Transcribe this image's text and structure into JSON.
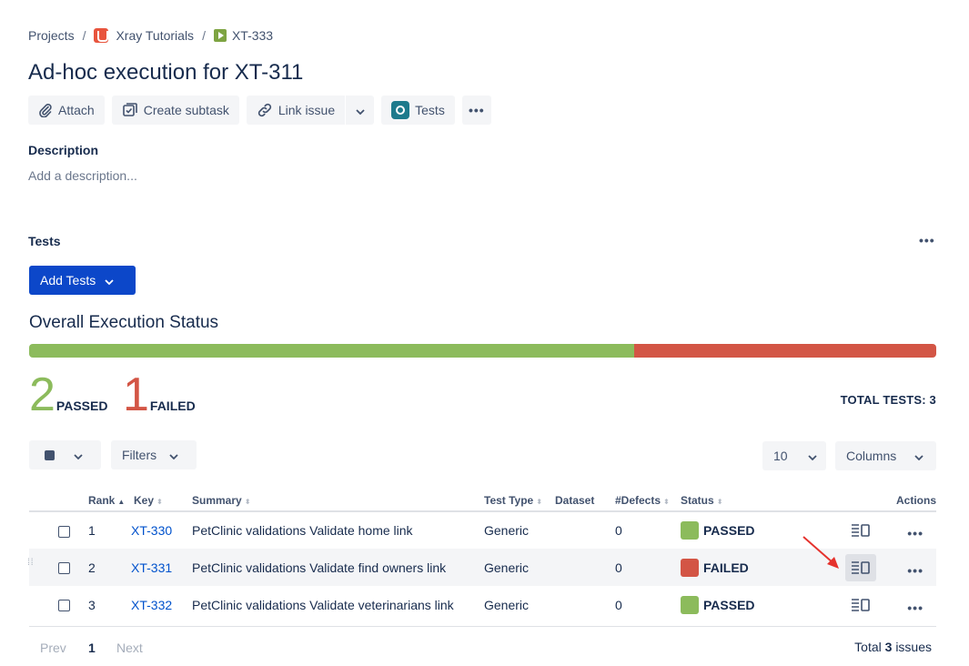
{
  "breadcrumb": {
    "root": "Projects",
    "project": "Xray Tutorials",
    "issue": "XT-333",
    "separator": "/"
  },
  "issue": {
    "title": "Ad-hoc execution for XT-311"
  },
  "toolbar": {
    "attach": "Attach",
    "create_subtask": "Create subtask",
    "link_issue": "Link issue",
    "tests": "Tests",
    "more": "•••"
  },
  "description": {
    "label": "Description",
    "placeholder": "Add a description..."
  },
  "tests_section": {
    "label": "Tests",
    "more": "•••",
    "add_tests": "Add Tests"
  },
  "overall": {
    "title": "Overall Execution Status",
    "passed_count": "2",
    "passed_label": "PASSED",
    "failed_count": "1",
    "failed_label": "FAILED",
    "passed_fraction": 0.667,
    "total": "TOTAL TESTS: 3",
    "colors": {
      "passed": "#8cbb5c",
      "failed": "#d35545"
    }
  },
  "controls": {
    "filters": "Filters",
    "page_size": "10",
    "columns": "Columns"
  },
  "table": {
    "headers": {
      "rank": "Rank",
      "key": "Key",
      "summary": "Summary",
      "test_type": "Test Type",
      "dataset": "Dataset",
      "defects": "#Defects",
      "status": "Status",
      "actions": "Actions"
    },
    "rows": [
      {
        "rank": "1",
        "key": "XT-330",
        "summary": "PetClinic validations Validate home link",
        "test_type": "Generic",
        "defects": "0",
        "status": "PASSED",
        "status_color": "#8cbb5c"
      },
      {
        "rank": "2",
        "key": "XT-331",
        "summary": "PetClinic validations Validate find owners link",
        "test_type": "Generic",
        "defects": "0",
        "status": "FAILED",
        "status_color": "#d35545"
      },
      {
        "rank": "3",
        "key": "XT-332",
        "summary": "PetClinic validations Validate veterinarians link",
        "test_type": "Generic",
        "defects": "0",
        "status": "PASSED",
        "status_color": "#8cbb5c"
      }
    ]
  },
  "pagination": {
    "prev": "Prev",
    "current": "1",
    "next": "Next",
    "total_prefix": "Total",
    "total_count": "3",
    "total_suffix": "issues"
  }
}
